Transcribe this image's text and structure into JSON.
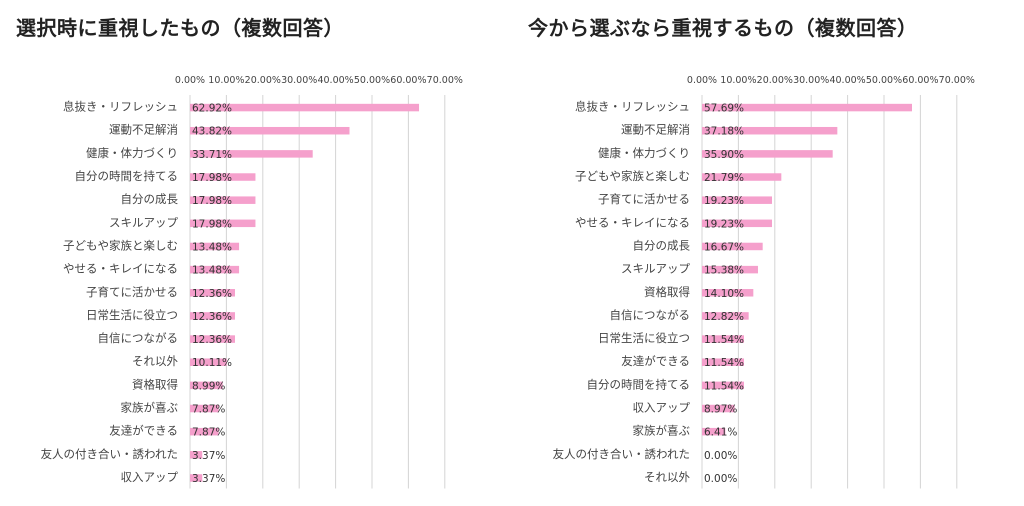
{
  "chart_data": [
    {
      "type": "bar",
      "orientation": "horizontal",
      "title": "選択時に重視したもの（複数回答）",
      "xlim": [
        0,
        70
      ],
      "ticks": [
        "0.00%",
        "10.00%",
        "20.00%",
        "30.00%",
        "40.00%",
        "50.00%",
        "60.00%",
        "70.00%"
      ],
      "grid": true,
      "color": "#f5a0cc",
      "categories": [
        "息抜き・リフレッシュ",
        "運動不足解消",
        "健康・体力づくり",
        "自分の時間を持てる",
        "自分の成長",
        "スキルアップ",
        "子どもや家族と楽しむ",
        "やせる・キレイになる",
        "子育てに活かせる",
        "日常生活に役立つ",
        "自信につながる",
        "それ以外",
        "資格取得",
        "家族が喜ぶ",
        "友達ができる",
        "友人の付き合い・誘われた",
        "収入アップ"
      ],
      "values": [
        62.92,
        43.82,
        33.71,
        17.98,
        17.98,
        17.98,
        13.48,
        13.48,
        12.36,
        12.36,
        12.36,
        10.11,
        8.99,
        7.87,
        7.87,
        3.37,
        3.37
      ],
      "value_labels": [
        "62.92%",
        "43.82%",
        "33.71%",
        "17.98%",
        "17.98%",
        "17.98%",
        "13.48%",
        "13.48%",
        "12.36%",
        "12.36%",
        "12.36%",
        "10.11%",
        "8.99%",
        "7.87%",
        "7.87%",
        "3.37%",
        "3.37%"
      ]
    },
    {
      "type": "bar",
      "orientation": "horizontal",
      "title": "今から選ぶなら重視するもの（複数回答）",
      "xlim": [
        0,
        70
      ],
      "ticks": [
        "0.00%",
        "10.00%",
        "20.00%",
        "30.00%",
        "40.00%",
        "50.00%",
        "60.00%",
        "70.00%"
      ],
      "grid": true,
      "color": "#f5a0cc",
      "categories": [
        "息抜き・リフレッシュ",
        "運動不足解消",
        "健康・体力づくり",
        "子どもや家族と楽しむ",
        "子育てに活かせる",
        "やせる・キレイになる",
        "自分の成長",
        "スキルアップ",
        "資格取得",
        "自信につながる",
        "日常生活に役立つ",
        "友達ができる",
        "自分の時間を持てる",
        "収入アップ",
        "家族が喜ぶ",
        "友人の付き合い・誘われた",
        "それ以外"
      ],
      "values": [
        57.69,
        37.18,
        35.9,
        21.79,
        19.23,
        19.23,
        16.67,
        15.38,
        14.1,
        12.82,
        11.54,
        11.54,
        11.54,
        8.97,
        6.41,
        0.0,
        0.0
      ],
      "value_labels": [
        "57.69%",
        "37.18%",
        "35.90%",
        "21.79%",
        "19.23%",
        "19.23%",
        "16.67%",
        "15.38%",
        "14.10%",
        "12.82%",
        "11.54%",
        "11.54%",
        "11.54%",
        "8.97%",
        "6.41%",
        "0.00%",
        "0.00%"
      ]
    }
  ]
}
